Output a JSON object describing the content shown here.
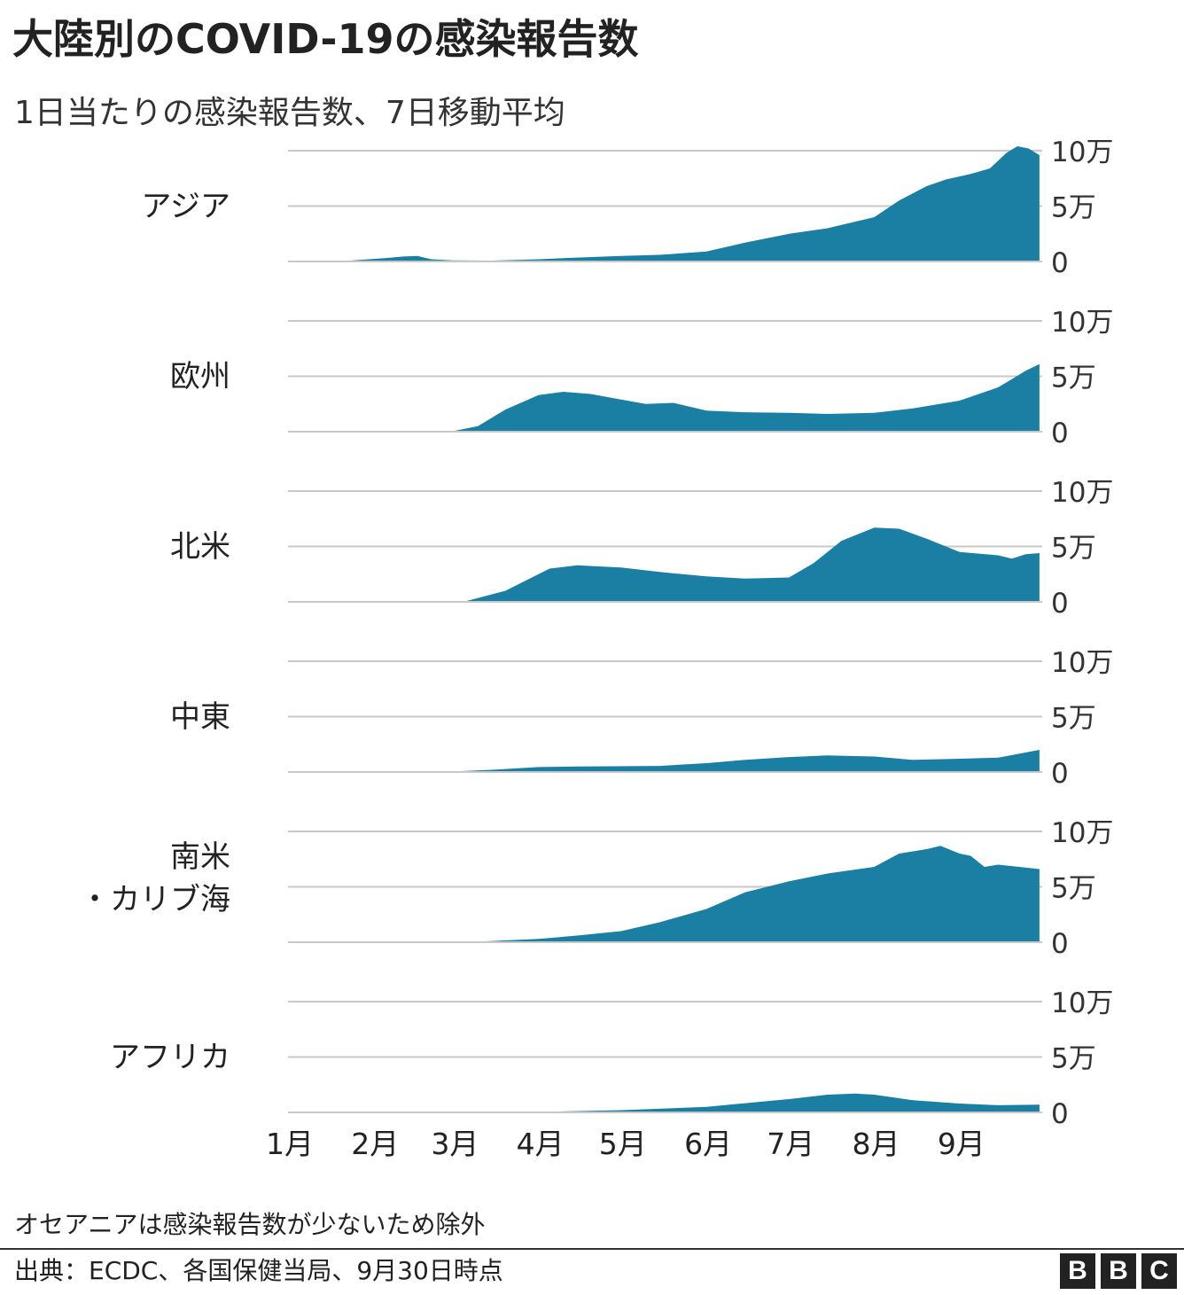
{
  "header": {
    "title": "大陸別のCOVID-19の感染報告数",
    "subtitle": "1日当たりの感染報告数、7日移動平均"
  },
  "footer": {
    "note": "オセアニアは感染報告数が少ないため除外",
    "source": "出典：ECDC、各国保健当局、9月30日時点",
    "logo": [
      "B",
      "B",
      "C"
    ]
  },
  "colors": {
    "area": "#1a7fa3",
    "grid": "#c8c8c8",
    "text": "#222222"
  },
  "chart_data": {
    "type": "area",
    "x_range": [
      "1月",
      "9月30日"
    ],
    "x_tick_labels": [
      "1月",
      "2月",
      "3月",
      "4月",
      "5月",
      "6月",
      "7月",
      "8月",
      "9月"
    ],
    "y_tick_labels": [
      "10万",
      "5万",
      "0"
    ],
    "y_ticks": [
      100000,
      50000,
      0
    ],
    "ylim": [
      0,
      100000
    ],
    "grid": true,
    "series": [
      {
        "name": "アジア",
        "label_lines": [
          "アジア"
        ],
        "points": [
          [
            "1/1",
            0
          ],
          [
            "1/20",
            200
          ],
          [
            "2/5",
            3000
          ],
          [
            "2/12",
            4500
          ],
          [
            "2/17",
            5000
          ],
          [
            "2/22",
            2000
          ],
          [
            "3/1",
            1000
          ],
          [
            "3/15",
            800
          ],
          [
            "4/1",
            2000
          ],
          [
            "4/15",
            3500
          ],
          [
            "5/1",
            5000
          ],
          [
            "5/15",
            6000
          ],
          [
            "6/1",
            9000
          ],
          [
            "6/15",
            17000
          ],
          [
            "7/1",
            25000
          ],
          [
            "7/15",
            30000
          ],
          [
            "8/1",
            40000
          ],
          [
            "8/10",
            55000
          ],
          [
            "8/20",
            68000
          ],
          [
            "8/27",
            74000
          ],
          [
            "9/5",
            79000
          ],
          [
            "9/12",
            84000
          ],
          [
            "9/18",
            98000
          ],
          [
            "9/22",
            104000
          ],
          [
            "9/26",
            102000
          ],
          [
            "9/30",
            96000
          ]
        ]
      },
      {
        "name": "欧州",
        "label_lines": [
          "欧州"
        ],
        "points": [
          [
            "1/1",
            0
          ],
          [
            "3/1",
            500
          ],
          [
            "3/10",
            5000
          ],
          [
            "3/20",
            20000
          ],
          [
            "4/1",
            33000
          ],
          [
            "4/10",
            36000
          ],
          [
            "4/20",
            34000
          ],
          [
            "5/1",
            29000
          ],
          [
            "5/10",
            25000
          ],
          [
            "5/20",
            26000
          ],
          [
            "6/1",
            19000
          ],
          [
            "6/15",
            17500
          ],
          [
            "7/1",
            17000
          ],
          [
            "7/15",
            16000
          ],
          [
            "8/1",
            17000
          ],
          [
            "8/15",
            21000
          ],
          [
            "9/1",
            28000
          ],
          [
            "9/15",
            40000
          ],
          [
            "9/25",
            55000
          ],
          [
            "9/30",
            61000
          ]
        ]
      },
      {
        "name": "北米",
        "label_lines": [
          "北米"
        ],
        "points": [
          [
            "1/1",
            0
          ],
          [
            "3/5",
            200
          ],
          [
            "3/20",
            10000
          ],
          [
            "4/5",
            30000
          ],
          [
            "4/15",
            33000
          ],
          [
            "5/1",
            31000
          ],
          [
            "5/15",
            27000
          ],
          [
            "6/1",
            23000
          ],
          [
            "6/15",
            21000
          ],
          [
            "7/1",
            22000
          ],
          [
            "7/10",
            35000
          ],
          [
            "7/20",
            55000
          ],
          [
            "8/1",
            67000
          ],
          [
            "8/10",
            66000
          ],
          [
            "8/20",
            57000
          ],
          [
            "9/1",
            45000
          ],
          [
            "9/15",
            42000
          ],
          [
            "9/20",
            39000
          ],
          [
            "9/25",
            43000
          ],
          [
            "9/30",
            44000
          ]
        ]
      },
      {
        "name": "中東",
        "label_lines": [
          "中東"
        ],
        "points": [
          [
            "1/1",
            0
          ],
          [
            "3/1",
            500
          ],
          [
            "3/15",
            2000
          ],
          [
            "4/1",
            4500
          ],
          [
            "4/15",
            5000
          ],
          [
            "5/15",
            5500
          ],
          [
            "6/1",
            8000
          ],
          [
            "6/15",
            11000
          ],
          [
            "7/1",
            13500
          ],
          [
            "7/15",
            15000
          ],
          [
            "8/1",
            14000
          ],
          [
            "8/15",
            11000
          ],
          [
            "9/1",
            12000
          ],
          [
            "9/15",
            13000
          ],
          [
            "9/30",
            20000
          ]
        ]
      },
      {
        "name": "南米・カリブ海",
        "label_lines": [
          "南米",
          "・カリブ海"
        ],
        "points": [
          [
            "1/1",
            0
          ],
          [
            "3/10",
            500
          ],
          [
            "4/1",
            3000
          ],
          [
            "4/15",
            6000
          ],
          [
            "5/1",
            10000
          ],
          [
            "5/15",
            18000
          ],
          [
            "6/1",
            30000
          ],
          [
            "6/15",
            45000
          ],
          [
            "7/1",
            55000
          ],
          [
            "7/15",
            62000
          ],
          [
            "8/1",
            68000
          ],
          [
            "8/10",
            80000
          ],
          [
            "8/20",
            84000
          ],
          [
            "8/25",
            87000
          ],
          [
            "9/1",
            80000
          ],
          [
            "9/5",
            78000
          ],
          [
            "9/10",
            68000
          ],
          [
            "9/15",
            70000
          ],
          [
            "9/30",
            66000
          ]
        ]
      },
      {
        "name": "アフリカ",
        "label_lines": [
          "アフリカ"
        ],
        "points": [
          [
            "1/1",
            0
          ],
          [
            "4/1",
            500
          ],
          [
            "5/1",
            2000
          ],
          [
            "6/1",
            5000
          ],
          [
            "7/1",
            12000
          ],
          [
            "7/15",
            16000
          ],
          [
            "7/25",
            17000
          ],
          [
            "8/1",
            16000
          ],
          [
            "8/15",
            11000
          ],
          [
            "9/1",
            8000
          ],
          [
            "9/15",
            6500
          ],
          [
            "9/30",
            7000
          ]
        ]
      }
    ]
  }
}
